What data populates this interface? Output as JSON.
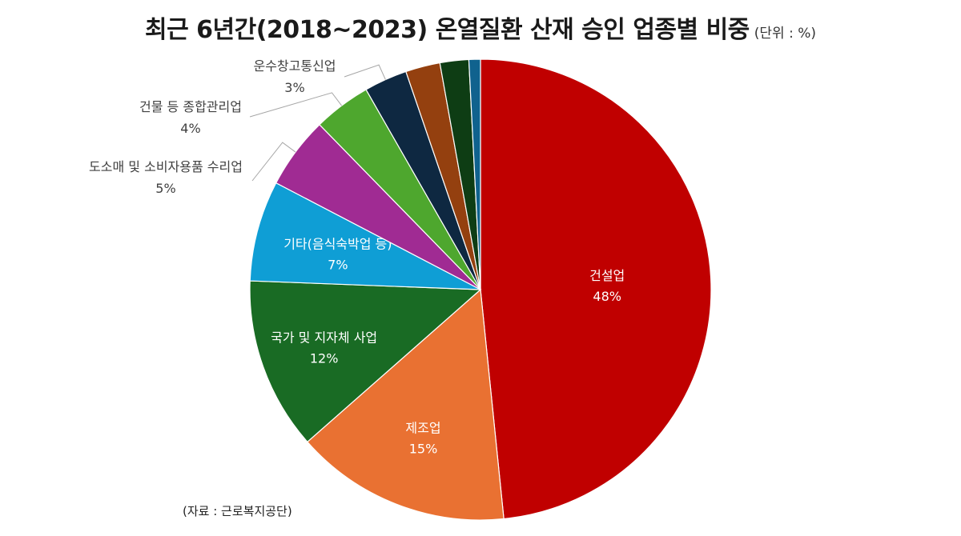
{
  "chart_data": {
    "type": "pie",
    "title": "최근 6년간(2018~2023) 온열질환 산재 승인 업종별 비중",
    "unit_note": "(단위 : %)",
    "source": "(자료 : 근로복지공단)",
    "slices": [
      {
        "label": "건설업",
        "value": 48,
        "value_label": "48%",
        "color": "#c00000"
      },
      {
        "label": "제조업",
        "value": 15,
        "value_label": "15%",
        "color": "#e97132"
      },
      {
        "label": "국가 및 지자체 사업",
        "value": 12,
        "value_label": "12%",
        "color": "#196b24"
      },
      {
        "label": "기타(음식숙박업 등)",
        "value": 7,
        "value_label": "7%",
        "color": "#0f9ed5"
      },
      {
        "label": "도소매 및 소비자용품 수리업",
        "value": 5,
        "value_label": "5%",
        "color": "#a02b93"
      },
      {
        "label": "건물 등 종합관리업",
        "value": 4,
        "value_label": "4%",
        "color": "#4ea72e"
      },
      {
        "label": "운수창고통신업",
        "value": 3,
        "value_label": "3%",
        "color": "#0e2841"
      },
      {
        "label": "",
        "value": 2.4,
        "value_label": "",
        "color": "#94400f"
      },
      {
        "label": "",
        "value": 2.0,
        "value_label": "",
        "color": "#0e3d14"
      },
      {
        "label": "",
        "value": 0.8,
        "value_label": "",
        "color": "#10628e"
      }
    ]
  }
}
